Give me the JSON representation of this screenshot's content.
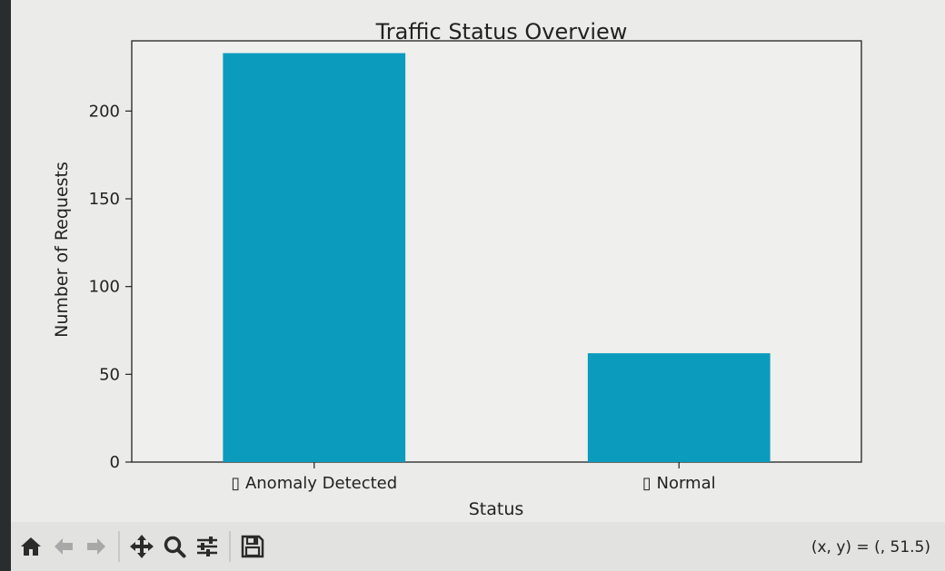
{
  "chart_data": {
    "type": "bar",
    "title": "Traffic Status Overview",
    "xlabel": "Status",
    "ylabel": "Number of Requests",
    "categories": [
      "▯ Anomaly Detected",
      "▯ Normal"
    ],
    "values": [
      233,
      62
    ],
    "ylim": [
      0,
      240
    ],
    "yticks": [
      0,
      50,
      100,
      150,
      200
    ],
    "bar_color": "#0a9bbd",
    "grid": false,
    "legend": "none"
  },
  "toolbar": {
    "icons": [
      "home-icon",
      "back-arrow-icon",
      "forward-arrow-icon",
      "pan-icon",
      "zoom-icon",
      "configure-subplots-icon",
      "save-icon"
    ],
    "coords_text": "(x, y) = (, 51.5)"
  },
  "colors": {
    "icon": "#2b2b2b",
    "icon_disabled": "#a8a8a8"
  }
}
